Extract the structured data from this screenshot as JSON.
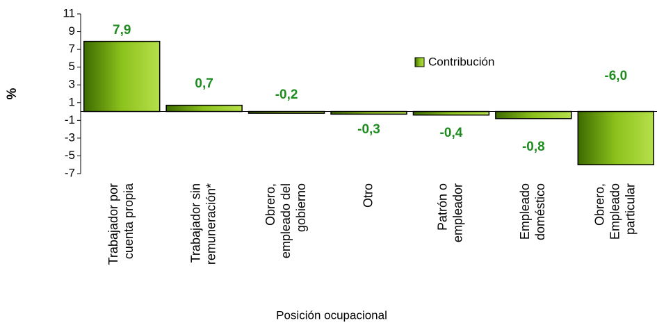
{
  "chart_data": {
    "type": "bar",
    "categories": [
      [
        "Trabajador por",
        "cuenta propia"
      ],
      [
        "Trabajador sin",
        "remuneración*"
      ],
      [
        "Obrero,",
        "empleado del",
        "gobierno"
      ],
      [
        "Otro"
      ],
      [
        "Patrón o",
        "empleador"
      ],
      [
        "Empleado",
        "doméstico"
      ],
      [
        "Obrero,",
        "Empleado",
        "particular"
      ]
    ],
    "series": [
      {
        "name": "Contribución",
        "color": "#7ab317",
        "values": [
          7.9,
          0.7,
          -0.2,
          -0.3,
          -0.4,
          -0.8,
          -6.0
        ],
        "value_labels": [
          "7,9",
          "0,7",
          "-0,2",
          "-0,3",
          "-0,4",
          "-0,8",
          "-6,0"
        ]
      }
    ],
    "y_label": "%",
    "x_label": "Posición ocupacional",
    "ylim": [
      -7,
      11
    ],
    "yticks": [
      11,
      9,
      7,
      5,
      3,
      1,
      -1,
      -3,
      -5,
      -7
    ]
  }
}
